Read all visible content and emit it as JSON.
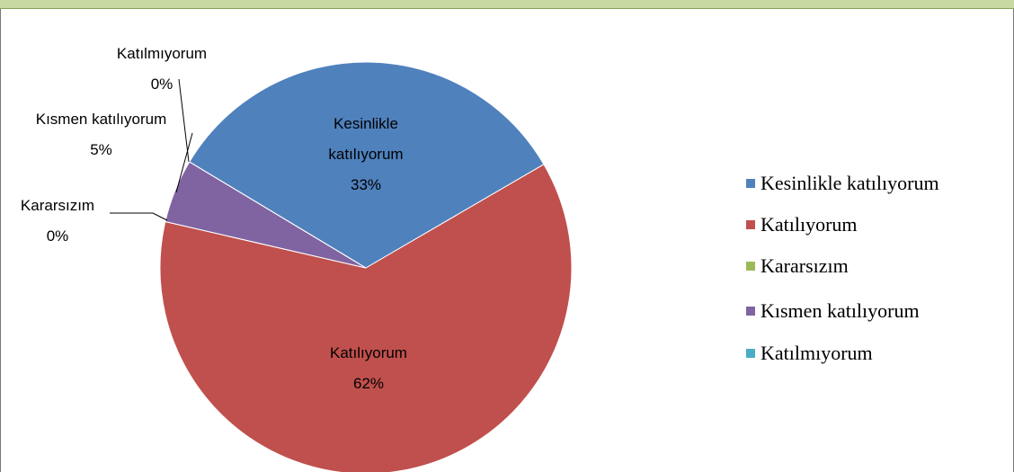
{
  "chart_data": {
    "type": "pie",
    "categories": [
      "Kesinlikle katılıyorum",
      "Katılıyorum",
      "Kararsızım",
      "Kısmen katılıyorum",
      "Katılmıyorum"
    ],
    "values": [
      33,
      62,
      0,
      5,
      0
    ],
    "value_labels": [
      "33%",
      "62%",
      "0%",
      "5%",
      "0%"
    ],
    "colors": [
      "#4f81bd",
      "#c0504d",
      "#9bbb59",
      "#8064a2",
      "#4bacc6"
    ],
    "legend": "right"
  }
}
